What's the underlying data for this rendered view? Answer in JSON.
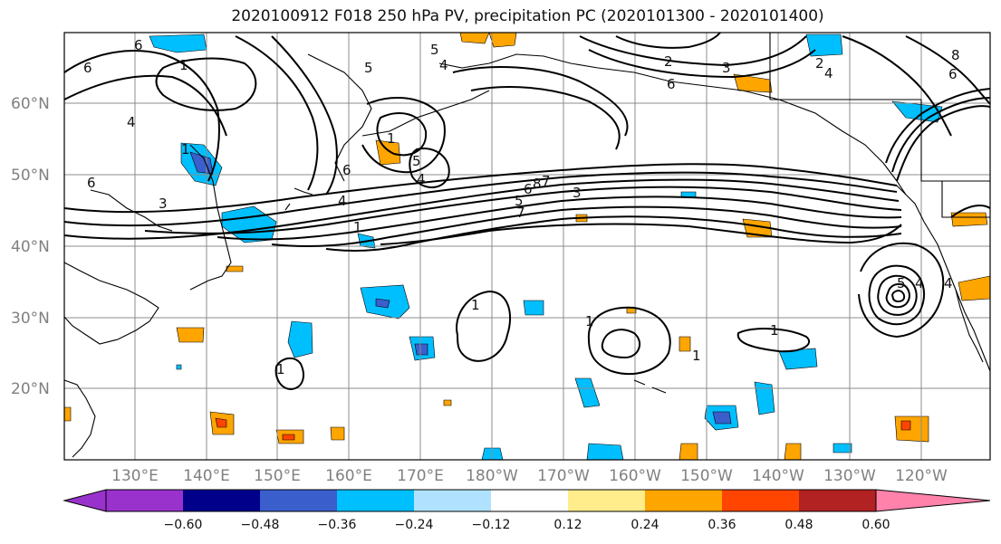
{
  "title": "2020100912 F018 250 hPa PV, precipitation PC (2020101300 - 2020101400)",
  "lat_labels": [
    "60°N",
    "50°N",
    "40°N",
    "30°N",
    "20°N"
  ],
  "lon_labels": [
    "130°E",
    "140°E",
    "150°E",
    "160°E",
    "170°E",
    "180°W",
    "170°W",
    "160°W",
    "150°W",
    "140°W",
    "130°W",
    "120°W"
  ],
  "colorbar": {
    "tick_labels": [
      "−0.60",
      "−0.48",
      "−0.36",
      "−0.24",
      "−0.12",
      "0.12",
      "0.24",
      "0.36",
      "0.48",
      "0.60"
    ],
    "colors": [
      "#9932cc",
      "#00008b",
      "#3a5fcd",
      "#00bfff",
      "#b0e2ff",
      "#ffffff",
      "#ffec8b",
      "#ffa500",
      "#ff4500",
      "#b22222",
      "#ff82ab"
    ]
  },
  "contour_labels": [
    "6",
    "1",
    "4",
    "6",
    "3",
    "1",
    "4",
    "5",
    "6",
    "5",
    "4",
    "1",
    "2",
    "3",
    "6",
    "2",
    "4",
    "6",
    "8",
    "6",
    "3",
    "4",
    "5",
    "6",
    "7",
    "4",
    "1",
    "8",
    "7",
    "5",
    "1",
    "1",
    "1",
    "1",
    "1",
    "4",
    "5"
  ]
}
